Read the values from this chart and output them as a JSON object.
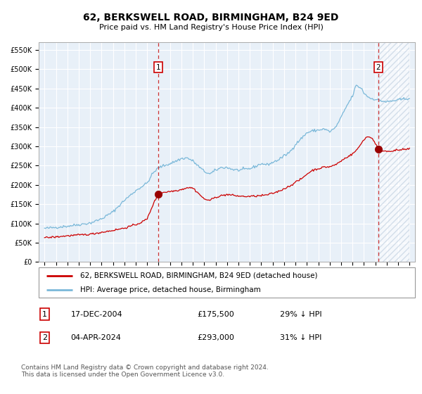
{
  "title": "62, BERKSWELL ROAD, BIRMINGHAM, B24 9ED",
  "subtitle": "Price paid vs. HM Land Registry's House Price Index (HPI)",
  "legend_line1": "62, BERKSWELL ROAD, BIRMINGHAM, B24 9ED (detached house)",
  "legend_line2": "HPI: Average price, detached house, Birmingham",
  "annotation1_label": "1",
  "annotation1_date": "17-DEC-2004",
  "annotation1_price": "£175,500",
  "annotation1_hpi": "29% ↓ HPI",
  "annotation2_label": "2",
  "annotation2_date": "04-APR-2024",
  "annotation2_price": "£293,000",
  "annotation2_hpi": "31% ↓ HPI",
  "footnote": "Contains HM Land Registry data © Crown copyright and database right 2024.\nThis data is licensed under the Open Government Licence v3.0.",
  "hpi_color": "#7ab8d9",
  "price_color": "#cc0000",
  "bg_color": "#e8f0f8",
  "marker_color": "#990000",
  "marker1_x": 2004.96,
  "marker1_y": 175500,
  "marker2_x": 2024.25,
  "marker2_y": 293000,
  "vline1_x": 2004.96,
  "vline2_x": 2024.25,
  "ylim_min": 0,
  "ylim_max": 570000,
  "xlim_start": 1994.5,
  "xlim_end": 2027.5,
  "yticks": [
    0,
    50000,
    100000,
    150000,
    200000,
    250000,
    300000,
    350000,
    400000,
    450000,
    500000,
    550000
  ],
  "ytick_labels": [
    "£0",
    "£50K",
    "£100K",
    "£150K",
    "£200K",
    "£250K",
    "£300K",
    "£350K",
    "£400K",
    "£450K",
    "£500K",
    "£550K"
  ],
  "xtick_years": [
    1995,
    1996,
    1997,
    1998,
    1999,
    2000,
    2001,
    2002,
    2003,
    2004,
    2005,
    2006,
    2007,
    2008,
    2009,
    2010,
    2011,
    2012,
    2013,
    2014,
    2015,
    2016,
    2017,
    2018,
    2019,
    2020,
    2021,
    2022,
    2023,
    2024,
    2025,
    2026,
    2027
  ],
  "title_fontsize": 10,
  "subtitle_fontsize": 8,
  "tick_fontsize": 7,
  "legend_fontsize": 7.5,
  "annot_fontsize": 8,
  "footnote_fontsize": 6.5
}
